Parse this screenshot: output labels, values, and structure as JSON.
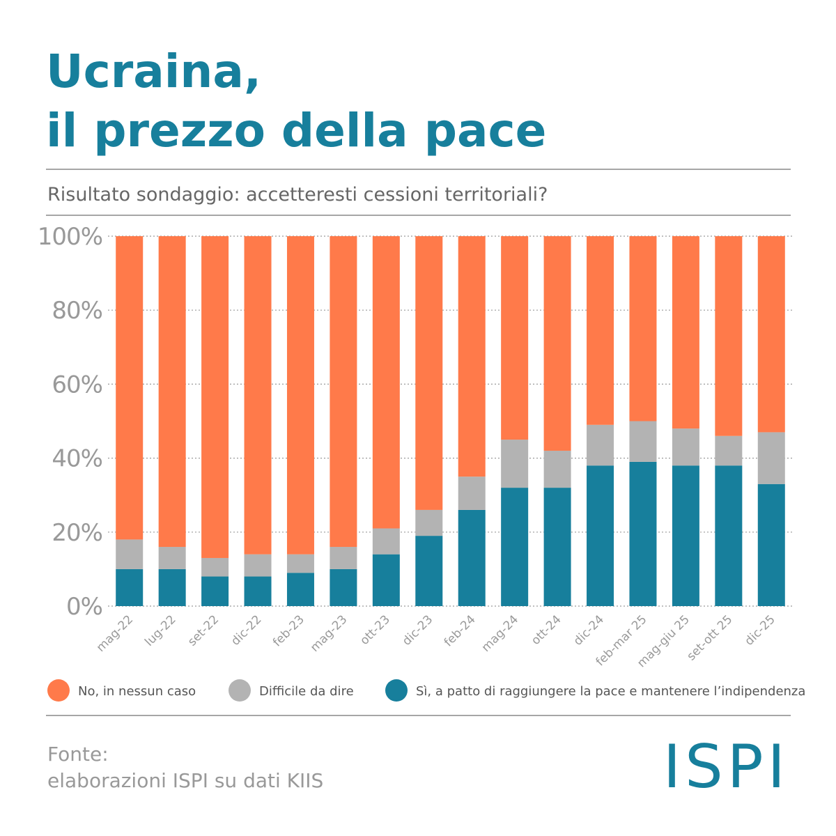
{
  "chart_data": {
    "type": "stacked-bar",
    "title_lines": [
      "Ucraina,",
      "il prezzo della pace"
    ],
    "subtitle": "Risultato sondaggio: accetteresti cessioni territoriali?",
    "categories": [
      "mag-22",
      "lug-22",
      "set-22",
      "dic-22",
      "feb-23",
      "mag-23",
      "ott-23",
      "dic-23",
      "feb-24",
      "mag-24",
      "ott-24",
      "dic-24",
      "feb-mar 25",
      "mag-giu 25",
      "set-ott 25",
      "dic-25"
    ],
    "series": [
      {
        "name": "No, in nessun caso",
        "color": "#ff7a4a",
        "values": [
          82,
          84,
          87,
          86,
          86,
          84,
          79,
          74,
          65,
          55,
          58,
          51,
          50,
          52,
          54,
          53
        ]
      },
      {
        "name": "Difficile da dire",
        "color": "#b3b3b3",
        "values": [
          8,
          6,
          5,
          6,
          5,
          6,
          7,
          7,
          9,
          13,
          10,
          11,
          11,
          10,
          8,
          14
        ]
      },
      {
        "name": "Sì, a patto di raggiungere la pace e mantenere l’indipendenza",
        "color": "#177f9c",
        "values": [
          10,
          10,
          8,
          8,
          9,
          10,
          14,
          19,
          26,
          32,
          32,
          38,
          39,
          38,
          38,
          33
        ]
      }
    ],
    "ylim": [
      0,
      100
    ],
    "yticks": [
      {
        "value": 0,
        "label": "0%"
      },
      {
        "value": 20,
        "label": "20%"
      },
      {
        "value": 40,
        "label": "40%"
      },
      {
        "value": 60,
        "label": "60%"
      },
      {
        "value": 80,
        "label": "80%"
      },
      {
        "value": 100,
        "label": "100%"
      }
    ],
    "grid": true,
    "source_lines": [
      "Fonte:",
      "elaborazioni ISPI su dati KIIS"
    ],
    "logo": "ISPI"
  }
}
